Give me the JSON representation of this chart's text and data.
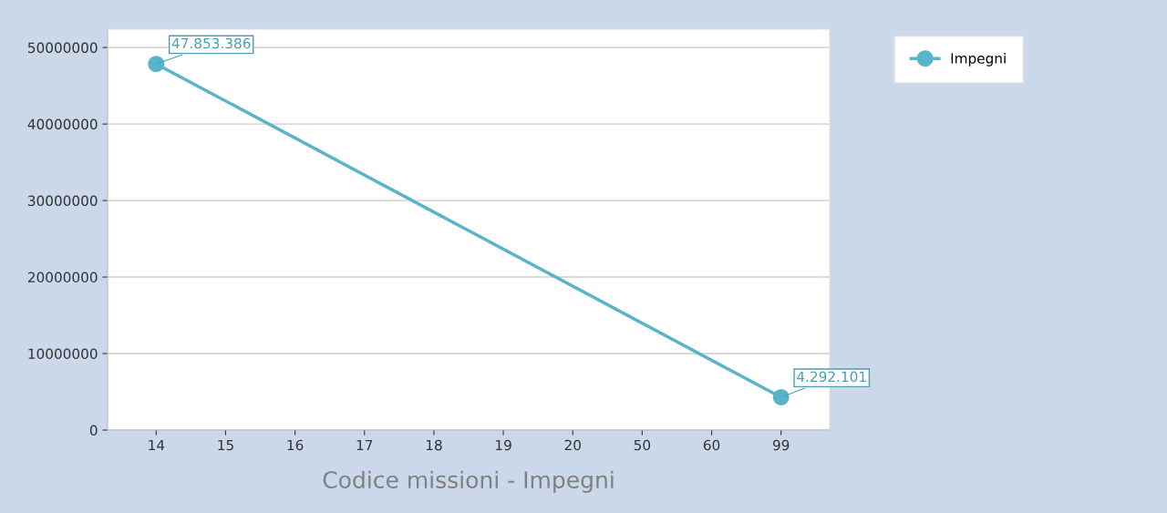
{
  "chart_data": {
    "type": "line",
    "xlabel": "Codice missioni - Impegni",
    "categories": [
      "14",
      "15",
      "16",
      "17",
      "18",
      "19",
      "20",
      "50",
      "60",
      "99"
    ],
    "series": [
      {
        "name": "Impegni",
        "color": "#5ab4c9",
        "values": [
          47853386,
          null,
          null,
          null,
          null,
          null,
          null,
          null,
          null,
          4292101
        ],
        "value_labels": [
          "47.853.386",
          null,
          null,
          null,
          null,
          null,
          null,
          null,
          null,
          "4.292.101"
        ]
      }
    ],
    "ylim": [
      0,
      52400000
    ],
    "yticks": [
      0,
      10000000,
      20000000,
      30000000,
      40000000,
      50000000
    ],
    "grid": "y",
    "legend": "top right",
    "marker": "circle"
  }
}
